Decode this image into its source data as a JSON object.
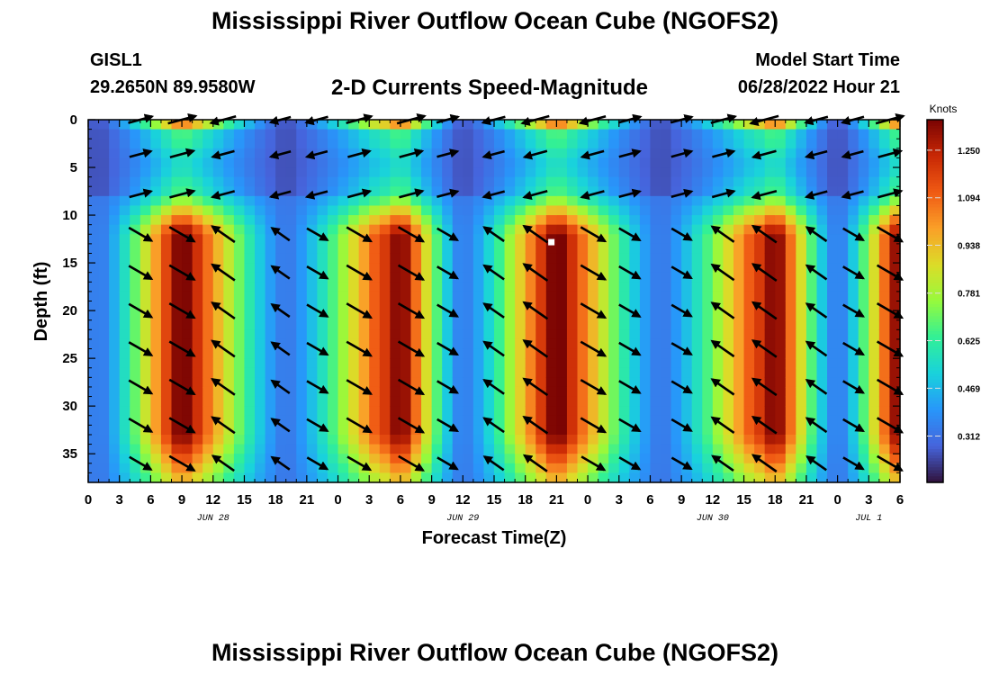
{
  "header": {
    "title": "Mississippi River Outflow Ocean Cube (NGOFS2)",
    "station_id": "GISL1",
    "station_coords": "29.2650N  89.9580W",
    "subtitle": "2-D Currents Speed-Magnitude",
    "model_start_label": "Model Start Time",
    "model_start_value": "06/28/2022 Hour 21"
  },
  "footer": {
    "repeat_title": "Mississippi River Outflow Ocean Cube (NGOFS2)"
  },
  "chart_data": {
    "type": "heatmap",
    "title": "2-D Currents Speed-Magnitude",
    "xlabel": "Forecast Time(Z)",
    "ylabel": "Depth (ft)",
    "x_range_hours_since_jun28_00z": [
      0,
      78
    ],
    "ylim": [
      38,
      0
    ],
    "x_ticks": [
      "0",
      "3",
      "6",
      "9",
      "12",
      "15",
      "18",
      "21",
      "0",
      "3",
      "6",
      "9",
      "12",
      "15",
      "18",
      "21",
      "0",
      "3",
      "6",
      "9",
      "12",
      "15",
      "18",
      "21",
      "0",
      "3",
      "6"
    ],
    "y_ticks": [
      0,
      5,
      10,
      15,
      20,
      25,
      30,
      35
    ],
    "date_labels": [
      {
        "text": "JUN 28",
        "hour": 12
      },
      {
        "text": "JUN 29",
        "hour": 36
      },
      {
        "text": "JUN 30",
        "hour": 60
      },
      {
        "text": "JUL 1",
        "hour": 75
      }
    ],
    "colorbar": {
      "label": "Knots",
      "ticks": [
        "1.250",
        "1.094",
        "0.938",
        "0.781",
        "0.625",
        "0.469",
        "0.312"
      ],
      "tick_values": [
        1.25,
        1.094,
        0.938,
        0.781,
        0.625,
        0.469,
        0.312
      ],
      "range": [
        0.16,
        1.35
      ],
      "colormap": "turbo"
    },
    "speed_model": {
      "description": "speed grows with depth below 8 ft; peaks centred near forecast hours",
      "peak_hours": [
        9,
        30,
        45,
        66,
        78
      ],
      "minimum_hours": [
        1,
        19,
        36,
        55,
        72
      ],
      "max_speed": 1.3,
      "min_speed": 0.2
    },
    "vector_rows_depth_ft": [
      0,
      3.6,
      7.8,
      12,
      16,
      20,
      24,
      28,
      32,
      36
    ],
    "vector_columns_hour": [
      5,
      9,
      13,
      18.5,
      22,
      26,
      31,
      34.5,
      39,
      43,
      48.5,
      52,
      57,
      61,
      65,
      70,
      73.5,
      77
    ]
  }
}
